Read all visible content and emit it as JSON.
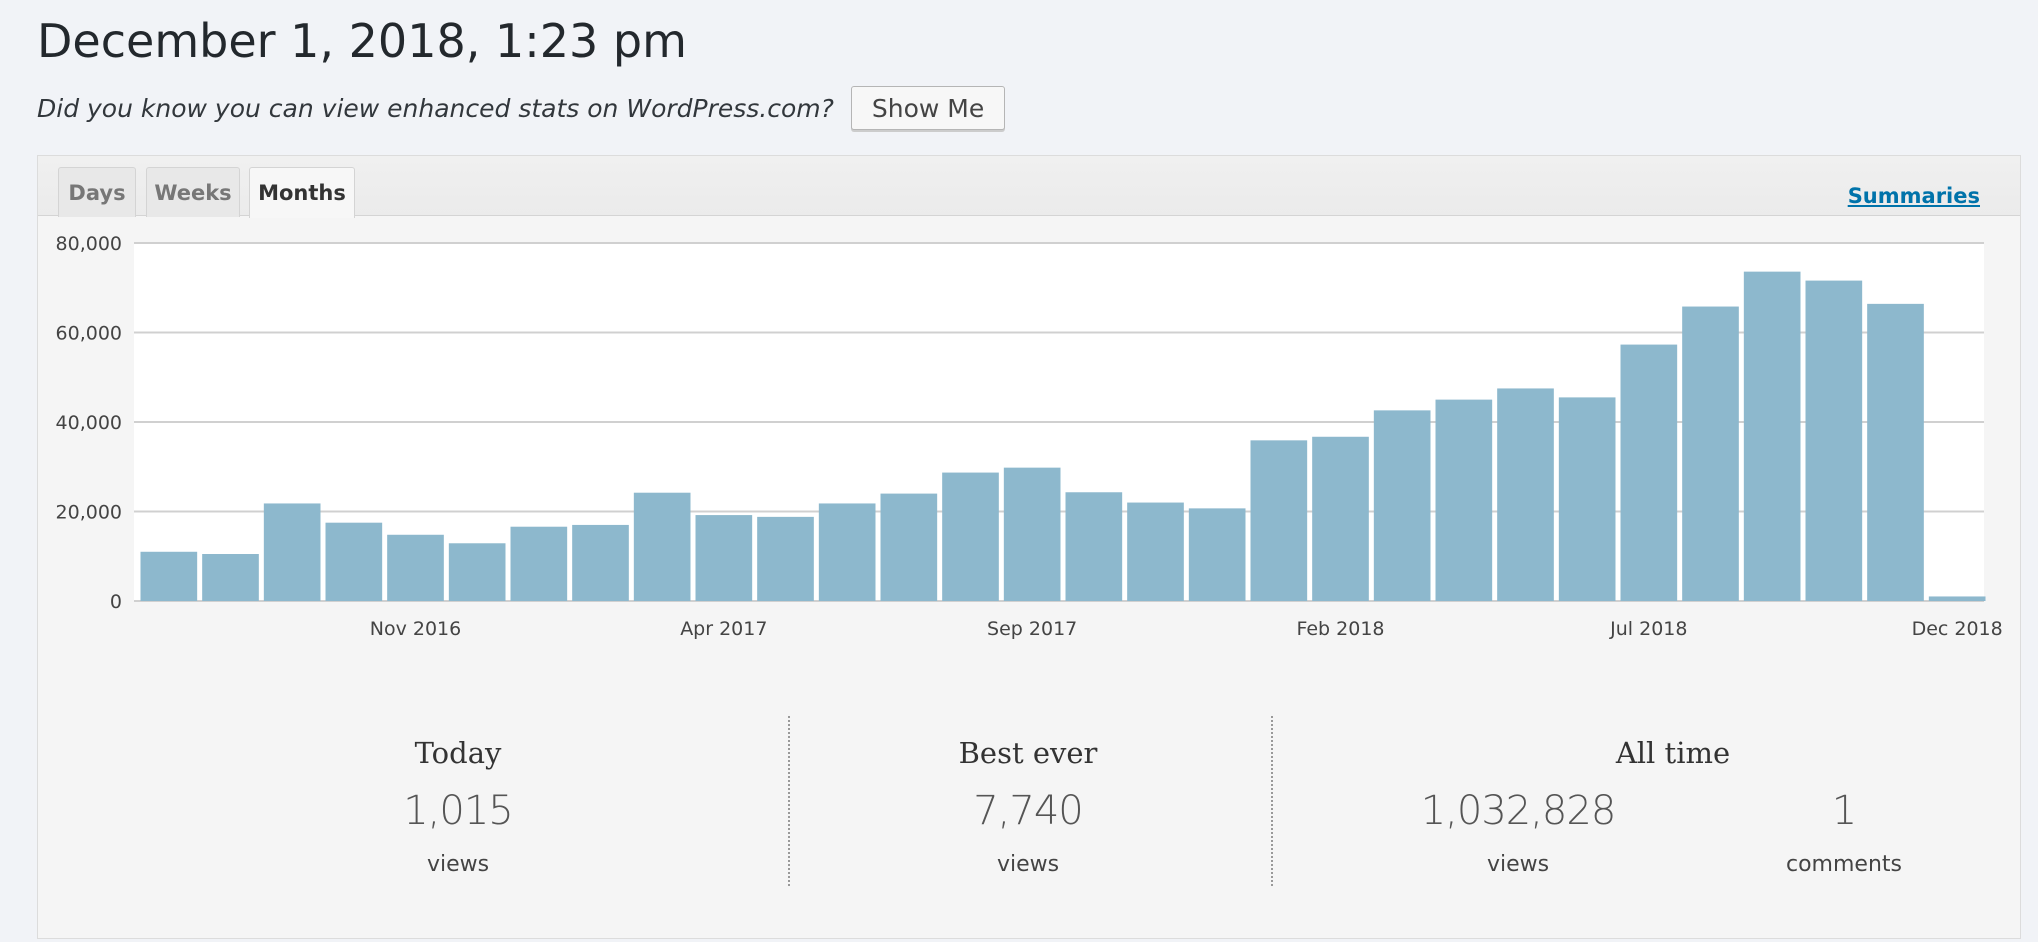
{
  "header": {
    "title": "December 1, 2018, 1:23 pm",
    "promo_text": "Did you know you can view enhanced stats on WordPress.com?",
    "show_me_label": "Show Me"
  },
  "tabs": [
    {
      "label": "Days",
      "active": false
    },
    {
      "label": "Weeks",
      "active": false
    },
    {
      "label": "Months",
      "active": true
    }
  ],
  "summaries_label": "Summaries",
  "colors": {
    "bar": "#8db8cd",
    "grid": "#d0d0d0",
    "link": "#0073aa"
  },
  "chart_data": {
    "type": "bar",
    "categories": [
      "Jul 2016",
      "Aug 2016",
      "Sep 2016",
      "Oct 2016",
      "Nov 2016",
      "Dec 2016",
      "Jan 2017",
      "Feb 2017",
      "Mar 2017",
      "Apr 2017",
      "May 2017",
      "Jun 2017",
      "Jul 2017",
      "Aug 2017",
      "Sep 2017",
      "Oct 2017",
      "Nov 2017",
      "Dec 2017",
      "Jan 2018",
      "Feb 2018",
      "Mar 2018",
      "Apr 2018",
      "May 2018",
      "Jun 2018",
      "Jul 2018",
      "Aug 2018",
      "Sep 2018",
      "Oct 2018",
      "Nov 2018",
      "Dec 2018"
    ],
    "values": [
      11000,
      10500,
      21800,
      17500,
      14800,
      12900,
      16600,
      17000,
      24200,
      19200,
      18800,
      21800,
      24000,
      28700,
      29800,
      24300,
      22000,
      20700,
      35900,
      36700,
      42600,
      45000,
      47500,
      45500,
      57300,
      65800,
      73600,
      71600,
      66400,
      1015
    ],
    "x_tick_labels": [
      "Nov 2016",
      "Apr 2017",
      "Sep 2017",
      "Feb 2018",
      "Jul 2018",
      "Dec 2018"
    ],
    "y_tick_labels": [
      "0",
      "20,000",
      "40,000",
      "60,000",
      "80,000"
    ],
    "ylim": [
      0,
      80000
    ],
    "grid": true,
    "title": "",
    "xlabel": "",
    "ylabel": ""
  },
  "stats": {
    "today": {
      "heading": "Today",
      "value": "1,015",
      "unit": "views"
    },
    "best_ever": {
      "heading": "Best ever",
      "value": "7,740",
      "unit": "views"
    },
    "all_time": {
      "heading": "All time",
      "views_value": "1,032,828",
      "views_unit": "views",
      "comments_value": "1",
      "comments_unit": "comments"
    }
  }
}
